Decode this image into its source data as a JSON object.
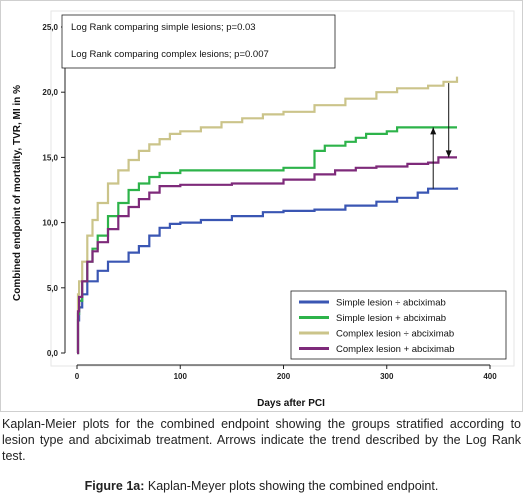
{
  "chart_data": {
    "type": "line",
    "xlabel": "Days after PCI",
    "ylabel": "Combined endpoint of mortality, TVR, MI in %",
    "xlim": [
      0,
      400
    ],
    "ylim": [
      0,
      25
    ],
    "x_ticks": [
      "0",
      "100",
      "200",
      "300",
      "400"
    ],
    "y_ticks": [
      "0,0",
      "5,0",
      "10,0",
      "15,0",
      "20,0",
      "25,0"
    ],
    "grid": false,
    "legend_position": "bottom-right",
    "annotations": [
      "Log Rank comparing simple lesions; p=0.03",
      "Log Rank comparing complex lesions; p=0.007"
    ],
    "series": [
      {
        "name": "Simple lesion ÷ abciximab",
        "color": "#3a56b3",
        "points": [
          [
            0,
            0
          ],
          [
            1,
            2.5
          ],
          [
            2,
            3.5
          ],
          [
            5,
            4.5
          ],
          [
            10,
            5.5
          ],
          [
            20,
            6.3
          ],
          [
            30,
            7.0
          ],
          [
            50,
            7.7
          ],
          [
            60,
            8.2
          ],
          [
            70,
            9.0
          ],
          [
            80,
            9.6
          ],
          [
            90,
            9.9
          ],
          [
            100,
            10.0
          ],
          [
            120,
            10.2
          ],
          [
            150,
            10.5
          ],
          [
            180,
            10.8
          ],
          [
            200,
            10.9
          ],
          [
            230,
            11.0
          ],
          [
            260,
            11.3
          ],
          [
            290,
            11.6
          ],
          [
            310,
            11.9
          ],
          [
            330,
            12.3
          ],
          [
            340,
            12.6
          ],
          [
            355,
            12.6
          ],
          [
            368,
            12.7
          ]
        ]
      },
      {
        "name": "Simple lesion + abciximab",
        "color": "#2db34a",
        "points": [
          [
            0,
            0
          ],
          [
            1,
            3.0
          ],
          [
            2,
            4.0
          ],
          [
            5,
            5.5
          ],
          [
            10,
            7.0
          ],
          [
            15,
            8.0
          ],
          [
            20,
            9.0
          ],
          [
            30,
            10.5
          ],
          [
            40,
            11.5
          ],
          [
            50,
            12.5
          ],
          [
            60,
            13.0
          ],
          [
            70,
            13.5
          ],
          [
            80,
            13.8
          ],
          [
            100,
            14.0
          ],
          [
            150,
            14.0
          ],
          [
            200,
            14.2
          ],
          [
            230,
            15.5
          ],
          [
            240,
            15.9
          ],
          [
            260,
            16.2
          ],
          [
            270,
            16.5
          ],
          [
            280,
            16.8
          ],
          [
            300,
            17.0
          ],
          [
            310,
            17.3
          ],
          [
            368,
            17.3
          ]
        ]
      },
      {
        "name": "Complex lesion ÷ abciximab",
        "color": "#cbc48a",
        "points": [
          [
            0,
            0
          ],
          [
            1,
            4.5
          ],
          [
            2,
            5.5
          ],
          [
            5,
            7.0
          ],
          [
            10,
            9.0
          ],
          [
            15,
            10.2
          ],
          [
            20,
            11.5
          ],
          [
            30,
            13.0
          ],
          [
            40,
            14.0
          ],
          [
            50,
            14.8
          ],
          [
            60,
            15.5
          ],
          [
            70,
            16.0
          ],
          [
            80,
            16.4
          ],
          [
            90,
            16.8
          ],
          [
            100,
            17.0
          ],
          [
            120,
            17.3
          ],
          [
            140,
            17.7
          ],
          [
            160,
            18.0
          ],
          [
            180,
            18.3
          ],
          [
            200,
            18.5
          ],
          [
            230,
            19.0
          ],
          [
            260,
            19.5
          ],
          [
            290,
            20.0
          ],
          [
            310,
            20.3
          ],
          [
            340,
            20.5
          ],
          [
            355,
            20.8
          ],
          [
            368,
            21.2
          ]
        ]
      },
      {
        "name": "Complex lesion + abciximab",
        "color": "#7e2a7a",
        "points": [
          [
            0,
            0
          ],
          [
            1,
            3.2
          ],
          [
            2,
            4.3
          ],
          [
            5,
            5.5
          ],
          [
            10,
            7.0
          ],
          [
            15,
            7.8
          ],
          [
            20,
            8.5
          ],
          [
            30,
            9.5
          ],
          [
            40,
            10.5
          ],
          [
            50,
            11.2
          ],
          [
            60,
            11.8
          ],
          [
            70,
            12.3
          ],
          [
            80,
            12.8
          ],
          [
            100,
            12.9
          ],
          [
            150,
            13.0
          ],
          [
            200,
            13.3
          ],
          [
            230,
            13.7
          ],
          [
            250,
            14.0
          ],
          [
            270,
            14.2
          ],
          [
            290,
            14.3
          ],
          [
            320,
            14.5
          ],
          [
            340,
            14.6
          ],
          [
            350,
            15.0
          ],
          [
            368,
            15.0
          ]
        ]
      }
    ],
    "arrows": [
      {
        "x": 345,
        "from": 12.6,
        "to": 17.3,
        "direction": "up"
      },
      {
        "x": 360,
        "from": 20.7,
        "to": 15.0,
        "direction": "down"
      }
    ]
  },
  "caption": "Kaplan-Meier plots for the combined endpoint showing the groups stratified according to lesion type and abciximab treatment. Arrows indicate the trend described by the Log Rank test.",
  "figure_title": {
    "label": "Figure 1a:",
    "text": " Kaplan-Meyer plots showing the combined endpoint."
  }
}
